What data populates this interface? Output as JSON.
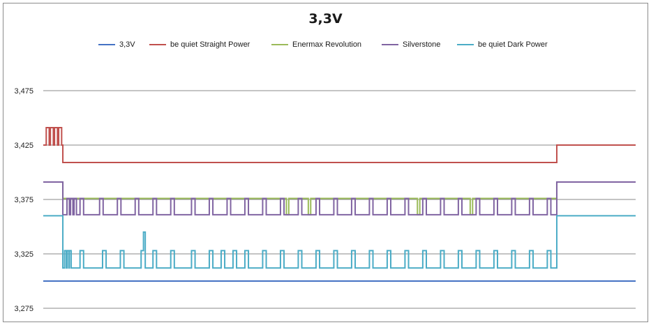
{
  "chart_data": {
    "type": "line",
    "title": "3,3V",
    "xlabel": "",
    "ylabel": "",
    "ylim": [
      3.275,
      3.475
    ],
    "yticks": [
      3.275,
      3.325,
      3.375,
      3.425,
      3.475
    ],
    "ytick_labels": [
      "3,275",
      "3,325",
      "3,375",
      "3,425",
      "3,475"
    ],
    "grid": true,
    "legend_position": "top",
    "x_points": 1000,
    "series": [
      {
        "name": "3,3V",
        "color": "#4472C4",
        "segments": [
          [
            0,
            999,
            3.3
          ]
        ]
      },
      {
        "name": "be quiet Straight Power",
        "color": "#C0504D",
        "segments": [
          [
            0,
            33,
            3.425
          ],
          [
            33,
            866,
            3.409
          ],
          [
            866,
            999,
            3.425
          ]
        ],
        "spikes": [
          [
            5,
            9,
            3.441
          ],
          [
            12,
            16,
            3.441
          ],
          [
            19,
            23,
            3.441
          ],
          [
            26,
            30,
            3.441
          ]
        ]
      },
      {
        "name": "Enermax Revolution",
        "color": "#9BBB59",
        "segments": [
          [
            0,
            33,
            3.391
          ],
          [
            33,
            866,
            3.376
          ],
          [
            866,
            999,
            3.391
          ]
        ],
        "dips": [
          [
            410,
            413,
            3.361
          ],
          [
            447,
            450,
            3.361
          ],
          [
            631,
            634,
            3.361
          ],
          [
            720,
            723,
            3.361
          ]
        ]
      },
      {
        "name": "Silverstone",
        "color": "#8064A2",
        "segments": [
          [
            0,
            33,
            3.391
          ],
          [
            33,
            866,
            3.361
          ],
          [
            866,
            999,
            3.391
          ]
        ],
        "pulses": [
          [
            40,
            43,
            3.376
          ],
          [
            46,
            49,
            3.376
          ],
          [
            52,
            55,
            3.376
          ],
          [
            62,
            67,
            3.376
          ],
          [
            95,
            100,
            3.376
          ],
          [
            125,
            130,
            3.376
          ],
          [
            155,
            160,
            3.376
          ],
          [
            185,
            190,
            3.376
          ],
          [
            215,
            220,
            3.376
          ],
          [
            250,
            255,
            3.376
          ],
          [
            280,
            285,
            3.376
          ],
          [
            310,
            315,
            3.376
          ],
          [
            340,
            345,
            3.376
          ],
          [
            370,
            375,
            3.376
          ],
          [
            400,
            405,
            3.376
          ],
          [
            430,
            435,
            3.376
          ],
          [
            460,
            465,
            3.376
          ],
          [
            490,
            495,
            3.376
          ],
          [
            520,
            525,
            3.376
          ],
          [
            550,
            555,
            3.376
          ],
          [
            580,
            585,
            3.376
          ],
          [
            610,
            615,
            3.376
          ],
          [
            640,
            645,
            3.376
          ],
          [
            670,
            675,
            3.376
          ],
          [
            700,
            705,
            3.376
          ],
          [
            730,
            735,
            3.376
          ],
          [
            760,
            765,
            3.376
          ],
          [
            790,
            795,
            3.376
          ],
          [
            820,
            825,
            3.376
          ],
          [
            850,
            855,
            3.376
          ]
        ]
      },
      {
        "name": "be quiet Dark Power",
        "color": "#4BACC6",
        "segments": [
          [
            0,
            33,
            3.36
          ],
          [
            33,
            866,
            3.312
          ],
          [
            866,
            999,
            3.36
          ]
        ],
        "pulses": [
          [
            36,
            38,
            3.328
          ],
          [
            40,
            42,
            3.328
          ],
          [
            44,
            46,
            3.328
          ],
          [
            62,
            67,
            3.328
          ],
          [
            100,
            105,
            3.328
          ],
          [
            130,
            135,
            3.328
          ],
          [
            165,
            170,
            3.328
          ],
          [
            185,
            190,
            3.328
          ],
          [
            215,
            220,
            3.328
          ],
          [
            250,
            255,
            3.328
          ],
          [
            280,
            285,
            3.328
          ],
          [
            300,
            305,
            3.328
          ],
          [
            320,
            325,
            3.328
          ],
          [
            340,
            345,
            3.328
          ],
          [
            370,
            375,
            3.328
          ],
          [
            400,
            405,
            3.328
          ],
          [
            430,
            435,
            3.328
          ],
          [
            460,
            465,
            3.328
          ],
          [
            490,
            495,
            3.328
          ],
          [
            520,
            525,
            3.328
          ],
          [
            550,
            555,
            3.328
          ],
          [
            580,
            585,
            3.328
          ],
          [
            610,
            615,
            3.328
          ],
          [
            640,
            645,
            3.328
          ],
          [
            670,
            675,
            3.328
          ],
          [
            700,
            705,
            3.328
          ],
          [
            730,
            735,
            3.328
          ],
          [
            760,
            765,
            3.328
          ],
          [
            790,
            795,
            3.328
          ],
          [
            820,
            825,
            3.328
          ],
          [
            850,
            855,
            3.328
          ]
        ],
        "spikes": [
          [
            169,
            171,
            3.345
          ]
        ]
      }
    ]
  }
}
